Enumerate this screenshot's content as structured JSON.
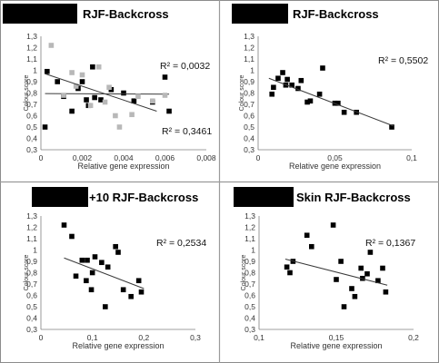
{
  "chart_data": [
    {
      "type": "scatter",
      "title": "RJF-Backcross",
      "xlabel": "Relative gene expression",
      "ylabel": "Colour score",
      "xlim": [
        0,
        0.008
      ],
      "ylim": [
        0.3,
        1.3
      ],
      "xticks": [
        "0",
        "0,002",
        "0,004",
        "0,006",
        "0,008"
      ],
      "yticks": [
        "0,3",
        "0,4",
        "0,5",
        "0,6",
        "0,7",
        "0,8",
        "0,9",
        "1",
        "1,1",
        "1,2",
        "1,3"
      ],
      "series": [
        {
          "color": "#000000",
          "r2_label": "R² = 0,0032",
          "trend": [
            [
              0.0002,
              0.795
            ],
            [
              0.0062,
              0.79
            ]
          ],
          "points": [
            [
              0.0002,
              0.5
            ],
            [
              0.0003,
              0.99
            ],
            [
              0.0008,
              0.9
            ],
            [
              0.0011,
              0.77
            ],
            [
              0.0015,
              0.64
            ],
            [
              0.0018,
              0.84
            ],
            [
              0.002,
              0.9
            ],
            [
              0.0022,
              0.74
            ],
            [
              0.0023,
              0.69
            ],
            [
              0.0025,
              1.03
            ],
            [
              0.0026,
              0.76
            ],
            [
              0.0029,
              0.74
            ],
            [
              0.0034,
              0.83
            ],
            [
              0.004,
              0.8
            ],
            [
              0.0045,
              0.73
            ],
            [
              0.0054,
              0.72
            ],
            [
              0.006,
              0.94
            ],
            [
              0.0062,
              0.64
            ]
          ]
        },
        {
          "color": "#b8b8b8",
          "r2_label": "R² = 0,3461",
          "trend": [
            [
              0.0002,
              0.97
            ],
            [
              0.0056,
              0.64
            ]
          ],
          "points": [
            [
              0.0005,
              1.22
            ],
            [
              0.0011,
              0.78
            ],
            [
              0.0015,
              0.98
            ],
            [
              0.0017,
              0.86
            ],
            [
              0.002,
              0.96
            ],
            [
              0.0024,
              0.69
            ],
            [
              0.0028,
              1.03
            ],
            [
              0.0031,
              0.72
            ],
            [
              0.0033,
              0.85
            ],
            [
              0.0036,
              0.6
            ],
            [
              0.0038,
              0.5
            ],
            [
              0.0044,
              0.61
            ],
            [
              0.0047,
              0.77
            ],
            [
              0.0054,
              0.73
            ],
            [
              0.006,
              0.78
            ]
          ]
        }
      ]
    },
    {
      "type": "scatter",
      "title": "RJF-Backcross",
      "xlabel": "Relative gene expression",
      "ylabel": "Colour score",
      "xlim": [
        0,
        0.1
      ],
      "ylim": [
        0.3,
        1.3
      ],
      "xticks": [
        "0",
        "0,05",
        "0,1"
      ],
      "yticks": [
        "0,3",
        "0,4",
        "0,5",
        "0,6",
        "0,7",
        "0,8",
        "0,9",
        "1",
        "1,1",
        "1,2",
        "1,3"
      ],
      "series": [
        {
          "color": "#000000",
          "r2_label": "R² = 0,5502",
          "trend": [
            [
              0.007,
              0.93
            ],
            [
              0.088,
              0.51
            ]
          ],
          "points": [
            [
              0.009,
              0.79
            ],
            [
              0.01,
              0.85
            ],
            [
              0.013,
              0.93
            ],
            [
              0.016,
              0.98
            ],
            [
              0.018,
              0.87
            ],
            [
              0.019,
              0.92
            ],
            [
              0.022,
              0.87
            ],
            [
              0.026,
              0.84
            ],
            [
              0.028,
              0.91
            ],
            [
              0.032,
              0.72
            ],
            [
              0.034,
              0.73
            ],
            [
              0.04,
              0.79
            ],
            [
              0.042,
              1.02
            ],
            [
              0.05,
              0.71
            ],
            [
              0.052,
              0.71
            ],
            [
              0.056,
              0.63
            ],
            [
              0.064,
              0.63
            ],
            [
              0.087,
              0.5
            ]
          ]
        }
      ]
    },
    {
      "type": "scatter",
      "title": "+10 RJF-Backcross",
      "xlabel": "Relative  gene expression",
      "ylabel": "Colour score",
      "xlim": [
        0,
        0.3
      ],
      "ylim": [
        0.3,
        1.3
      ],
      "xticks": [
        "0",
        "0,1",
        "0,2",
        "0,3"
      ],
      "yticks": [
        "0,3",
        "0,4",
        "0,5",
        "0,6",
        "0,7",
        "0,8",
        "0,9",
        "1",
        "1,1",
        "1,2",
        "1,3"
      ],
      "series": [
        {
          "color": "#000000",
          "r2_label": "R² = 0,2534",
          "trend": [
            [
              0.045,
              0.93
            ],
            [
              0.2,
              0.66
            ]
          ],
          "points": [
            [
              0.045,
              1.22
            ],
            [
              0.06,
              1.12
            ],
            [
              0.068,
              0.77
            ],
            [
              0.08,
              0.91
            ],
            [
              0.088,
              0.73
            ],
            [
              0.09,
              0.91
            ],
            [
              0.098,
              0.65
            ],
            [
              0.1,
              0.8
            ],
            [
              0.105,
              0.94
            ],
            [
              0.118,
              0.89
            ],
            [
              0.125,
              0.5
            ],
            [
              0.13,
              0.85
            ],
            [
              0.145,
              1.03
            ],
            [
              0.15,
              0.98
            ],
            [
              0.16,
              0.65
            ],
            [
              0.175,
              0.59
            ],
            [
              0.19,
              0.73
            ],
            [
              0.195,
              0.63
            ]
          ]
        }
      ]
    },
    {
      "type": "scatter",
      "title": "Skin RJF-Backcross",
      "xlabel": "Relative gene expression",
      "ylabel": "Colour score",
      "xlim": [
        0.1,
        0.2
      ],
      "ylim": [
        0.3,
        1.3
      ],
      "xticks": [
        "0,1",
        "0,15",
        "0,2"
      ],
      "yticks": [
        "0,3",
        "0,4",
        "0,5",
        "0,6",
        "0,7",
        "0,8",
        "0,9",
        "1",
        "1,1",
        "1,2",
        "1,3"
      ],
      "series": [
        {
          "color": "#000000",
          "r2_label": "R² = 0,1367",
          "trend": [
            [
              0.117,
              0.92
            ],
            [
              0.183,
              0.69
            ]
          ],
          "points": [
            [
              0.118,
              0.85
            ],
            [
              0.12,
              0.8
            ],
            [
              0.122,
              0.9
            ],
            [
              0.131,
              1.13
            ],
            [
              0.134,
              1.03
            ],
            [
              0.148,
              1.22
            ],
            [
              0.15,
              0.74
            ],
            [
              0.153,
              0.9
            ],
            [
              0.155,
              0.5
            ],
            [
              0.16,
              0.66
            ],
            [
              0.162,
              0.59
            ],
            [
              0.166,
              0.84
            ],
            [
              0.167,
              0.75
            ],
            [
              0.17,
              0.79
            ],
            [
              0.172,
              0.98
            ],
            [
              0.177,
              0.73
            ],
            [
              0.18,
              0.84
            ],
            [
              0.182,
              0.63
            ]
          ]
        }
      ]
    }
  ]
}
